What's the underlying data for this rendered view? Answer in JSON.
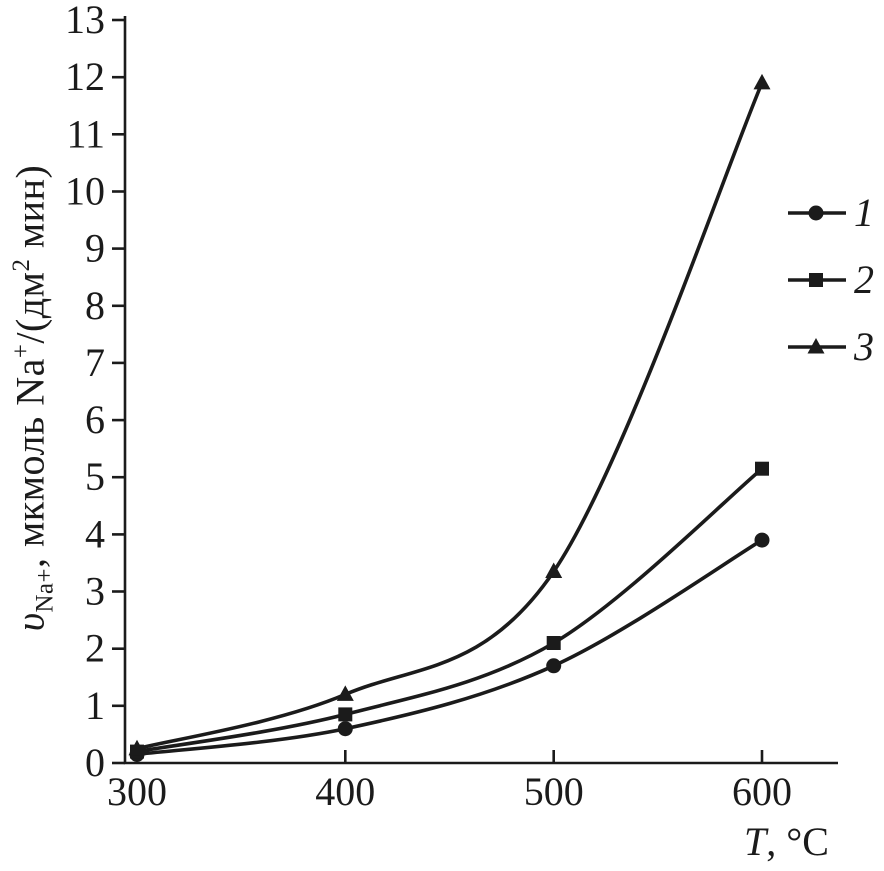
{
  "chart_data": {
    "type": "line",
    "x": [
      300,
      400,
      500,
      600
    ],
    "series": [
      {
        "name": "1",
        "marker": "circle",
        "values": [
          0.15,
          0.6,
          1.7,
          3.9
        ]
      },
      {
        "name": "2",
        "marker": "square",
        "values": [
          0.2,
          0.85,
          2.1,
          5.15
        ]
      },
      {
        "name": "3",
        "marker": "triangle",
        "values": [
          0.25,
          1.2,
          3.35,
          11.9
        ]
      }
    ],
    "title": "",
    "xlabel": "T, °C",
    "ylabel": "υNa+, мкмоль Na+/(дм2 мин)",
    "x_ticks": [
      300,
      400,
      500,
      600
    ],
    "y_ticks": [
      0,
      1,
      2,
      3,
      4,
      5,
      6,
      7,
      8,
      9,
      10,
      11,
      12,
      13
    ],
    "xlim": [
      300,
      600
    ],
    "ylim": [
      0,
      13
    ],
    "grid": false,
    "legend_position": "right",
    "line_color": "#1b1b1b",
    "background": "#ffffff"
  },
  "labels": {
    "ylabel_parts": {
      "upsilon": "υ",
      "sub_na": "Na+",
      "mid1": ", мкмоль Na",
      "sup_plus": "+",
      "mid2": "/(дм",
      "sup_two": "2",
      "end": " мин)"
    },
    "xlabel_parts": {
      "t": "T",
      "rest": ", °C"
    }
  }
}
